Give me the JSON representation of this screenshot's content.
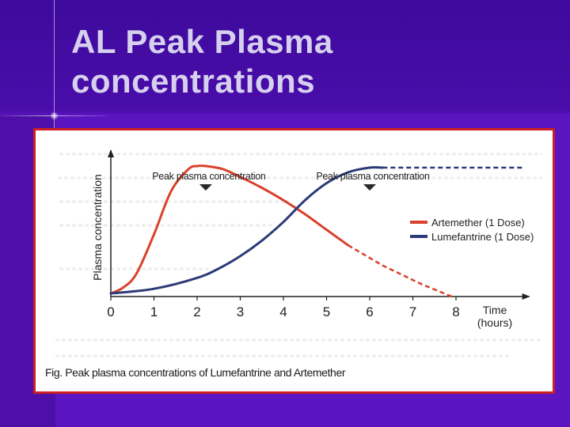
{
  "slide": {
    "title_line1": "AL Peak Plasma",
    "title_line2": "concentrations",
    "background_color": "#5a11b8",
    "title_color": "#d6d0ee",
    "frame_color": "#cc1f1f"
  },
  "chart_data": {
    "type": "line",
    "title": "",
    "caption": "Fig. Peak plasma concentrations of Lumefantrine and Artemether",
    "xlabel": "Time\n(hours)",
    "xlabel_line1": "Time",
    "xlabel_line2": "(hours)",
    "ylabel": "Plasma concentration",
    "x_ticks": [
      0,
      1,
      2,
      3,
      4,
      5,
      6,
      7,
      8
    ],
    "xlim": [
      0,
      9.7
    ],
    "ylim": [
      0,
      100
    ],
    "series": [
      {
        "name": "Artemether (1 Dose)",
        "color": "#d9412c",
        "solid": {
          "x": [
            0,
            0.3,
            0.6,
            1.0,
            1.4,
            1.8,
            2.0,
            2.2,
            2.6,
            3.0,
            3.5,
            4.0,
            4.5,
            5.0,
            5.5
          ],
          "y": [
            2,
            6,
            15,
            40,
            68,
            82,
            84,
            84,
            82,
            77,
            70,
            62,
            53,
            43,
            33
          ]
        },
        "dashed": {
          "x": [
            5.5,
            6.3,
            7.2,
            7.9
          ],
          "y": [
            33,
            20,
            8,
            0
          ]
        }
      },
      {
        "name": "Lumefantrine (1 Dose)",
        "color": "#2d3a78",
        "solid": {
          "x": [
            0,
            1.0,
            2.0,
            2.5,
            3.0,
            3.5,
            4.0,
            4.5,
            5.0,
            5.5,
            6.0,
            6.3
          ],
          "y": [
            2,
            5,
            12,
            18,
            26,
            36,
            48,
            62,
            73,
            80,
            83,
            83
          ]
        },
        "dashed": {
          "x": [
            6.3,
            9.6
          ],
          "y": [
            83,
            83
          ]
        }
      }
    ],
    "annotations": [
      {
        "text": "Peak plasma concentration",
        "x": 2.2,
        "marker": "down-triangle"
      },
      {
        "text": "Peak plasma concentration",
        "x": 6.0,
        "marker": "down-triangle"
      }
    ],
    "legend": {
      "position": "right"
    },
    "grid": false
  }
}
